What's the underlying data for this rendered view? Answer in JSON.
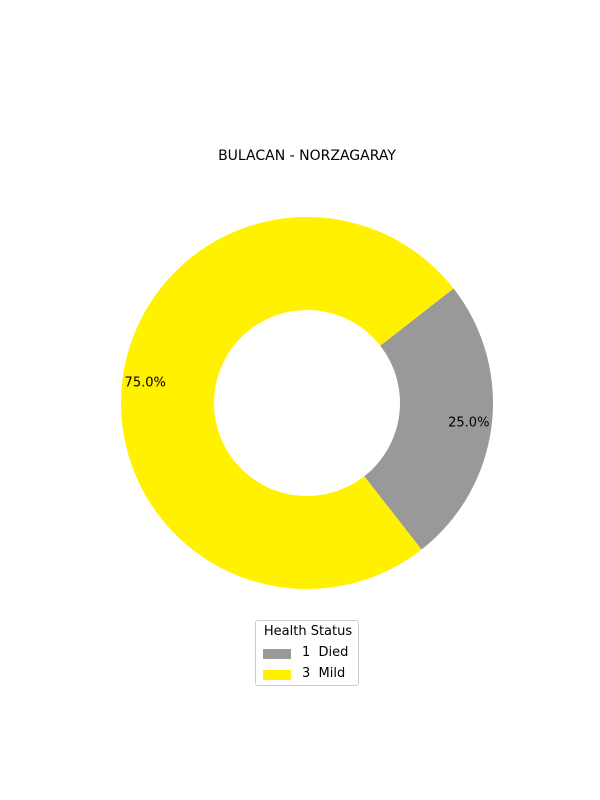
{
  "chart_data": {
    "type": "pie",
    "title": "BULACAN - NORZAGARAY",
    "slices": [
      {
        "label": "1  Died",
        "value": 1,
        "percent_label": "25.0%",
        "color": "#999999"
      },
      {
        "label": "3  Mild",
        "value": 3,
        "percent_label": "75.0%",
        "color": "#fff100"
      }
    ],
    "donut": true,
    "legend": {
      "title": "Health Status",
      "placement": "bottom-center"
    }
  }
}
